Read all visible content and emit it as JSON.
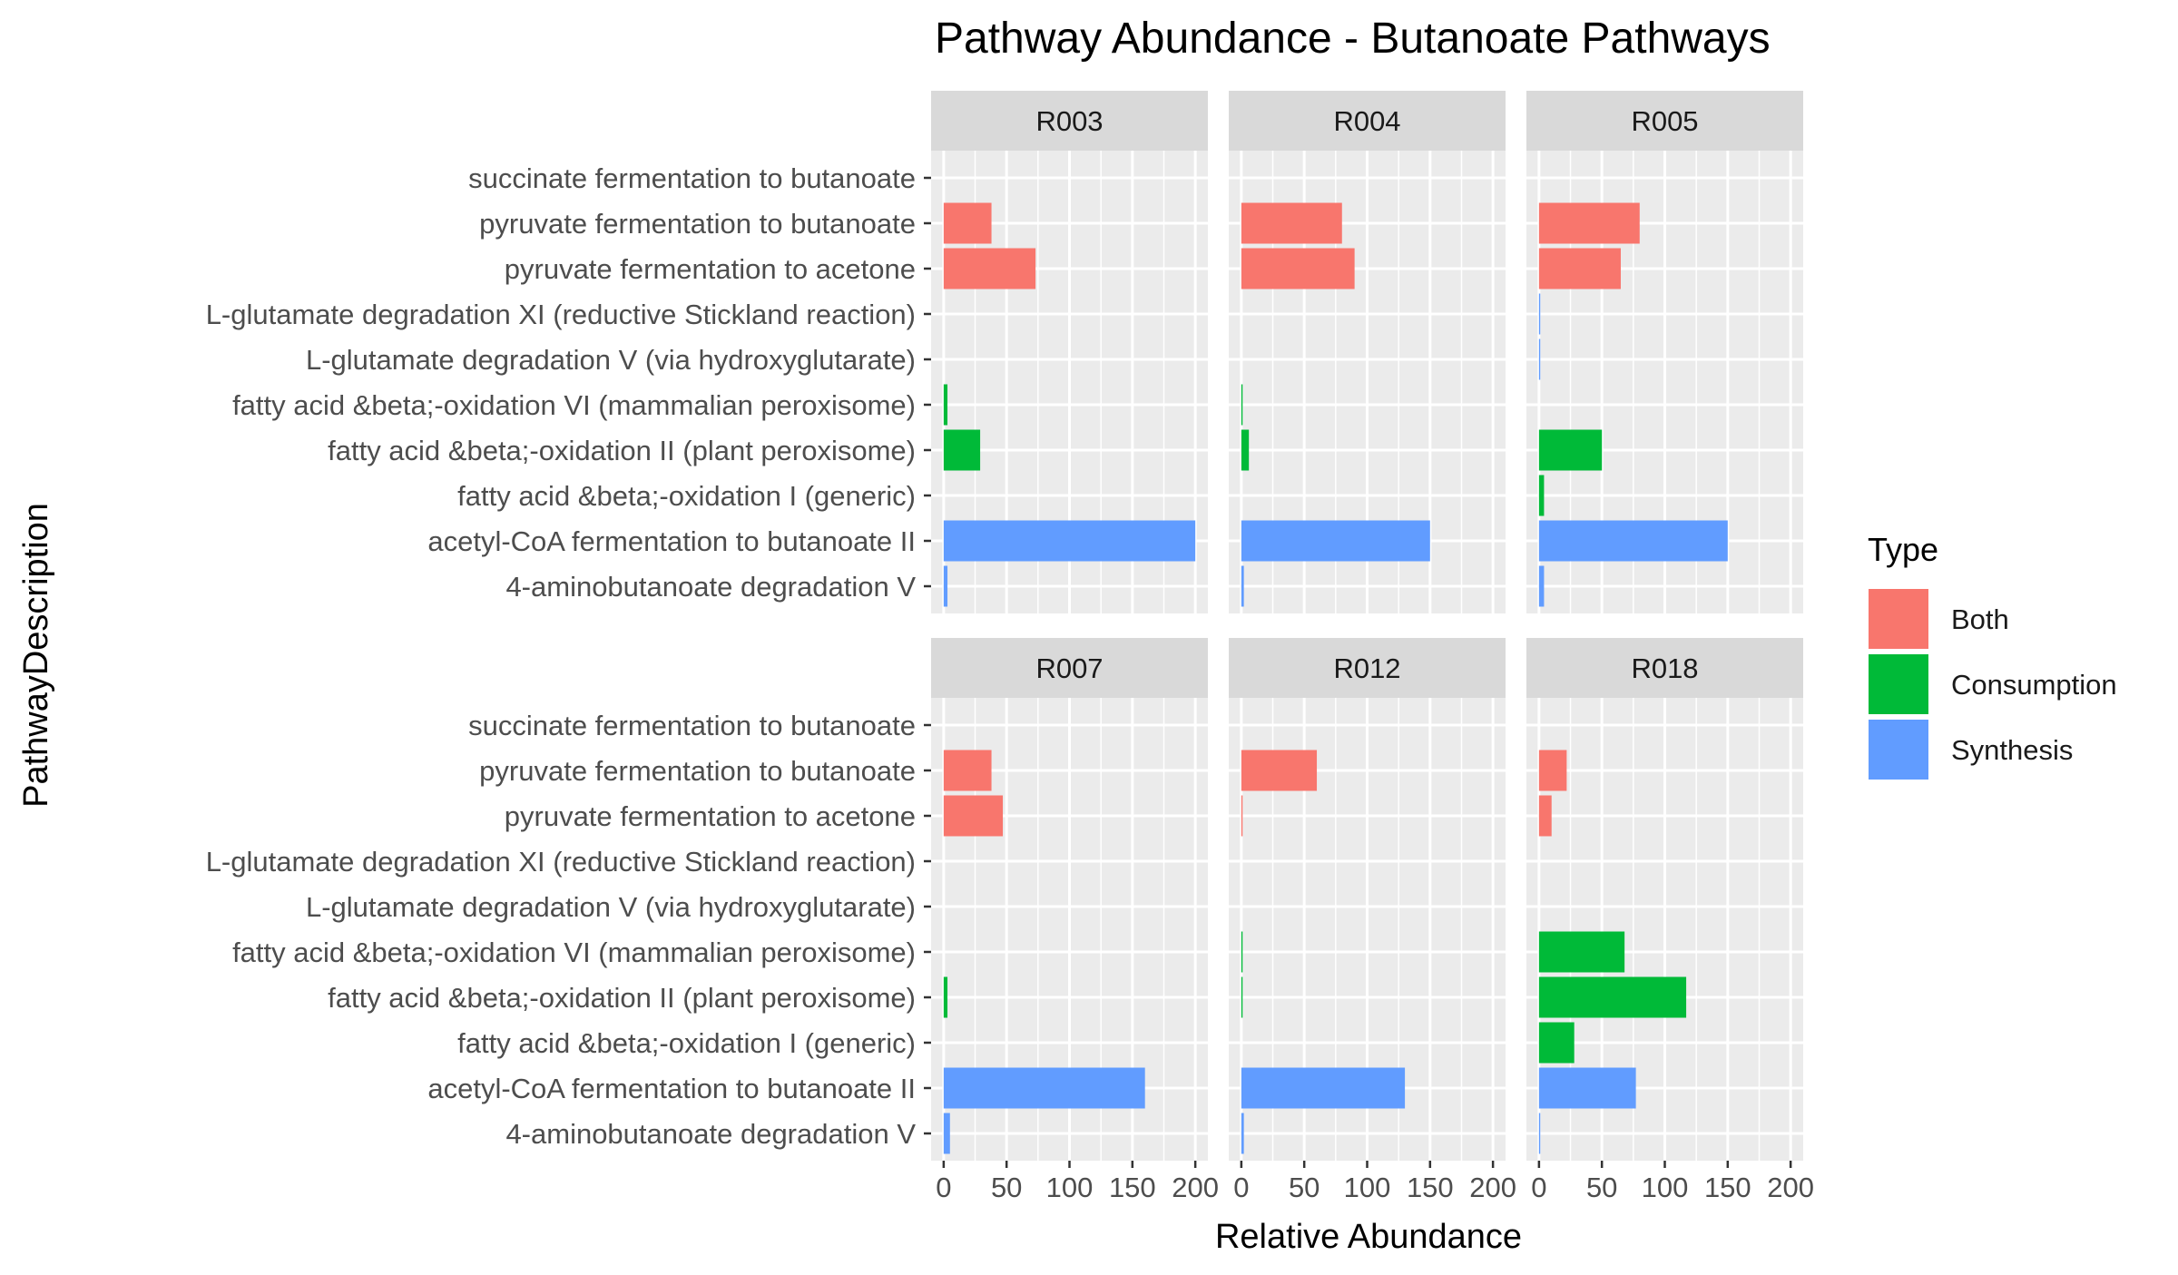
{
  "chart_data": {
    "type": "bar",
    "orientation": "horizontal",
    "faceted": true,
    "facet_layout": "3 columns x 2 rows",
    "title": "Pathway Abundance - Butanoate Pathways",
    "xlabel": "Relative Abundance",
    "ylabel": "PathwayDescription",
    "xlim": [
      0,
      200
    ],
    "x_ticks": [
      0,
      50,
      100,
      150,
      200
    ],
    "grid": true,
    "legend": {
      "title": "Type",
      "position": "right",
      "entries": [
        "Both",
        "Consumption",
        "Synthesis"
      ]
    },
    "type_colors": {
      "Both": "#F8766D",
      "Consumption": "#00BA38",
      "Synthesis": "#619CFF"
    },
    "categories": [
      "succinate fermentation to butanoate",
      "pyruvate fermentation to butanoate",
      "pyruvate fermentation to acetone",
      "L-glutamate degradation XI (reductive Stickland reaction)",
      "L-glutamate degradation V (via hydroxyglutarate)",
      "fatty acid &beta;-oxidation VI (mammalian peroxisome)",
      "fatty acid &beta;-oxidation II (plant peroxisome)",
      "fatty acid &beta;-oxidation I (generic)",
      "acetyl-CoA fermentation to butanoate II",
      "4-aminobutanoate degradation V"
    ],
    "category_types": [
      "Both",
      "Both",
      "Both",
      "Synthesis",
      "Synthesis",
      "Consumption",
      "Consumption",
      "Consumption",
      "Synthesis",
      "Synthesis"
    ],
    "panels": [
      {
        "name": "R003",
        "values": [
          0,
          38,
          73,
          0,
          0,
          3,
          29,
          0,
          200,
          3
        ]
      },
      {
        "name": "R004",
        "values": [
          0,
          80,
          90,
          0,
          0,
          1,
          6,
          0,
          150,
          2
        ]
      },
      {
        "name": "R005",
        "values": [
          0,
          80,
          65,
          1,
          1,
          0,
          50,
          4,
          150,
          4
        ]
      },
      {
        "name": "R007",
        "values": [
          0,
          38,
          47,
          0,
          0,
          0,
          3,
          0,
          160,
          5
        ]
      },
      {
        "name": "R012",
        "values": [
          0,
          60,
          1,
          0,
          0,
          1,
          1,
          0,
          130,
          2
        ]
      },
      {
        "name": "R018",
        "values": [
          0,
          22,
          10,
          0,
          0,
          68,
          117,
          28,
          77,
          1
        ]
      }
    ]
  }
}
